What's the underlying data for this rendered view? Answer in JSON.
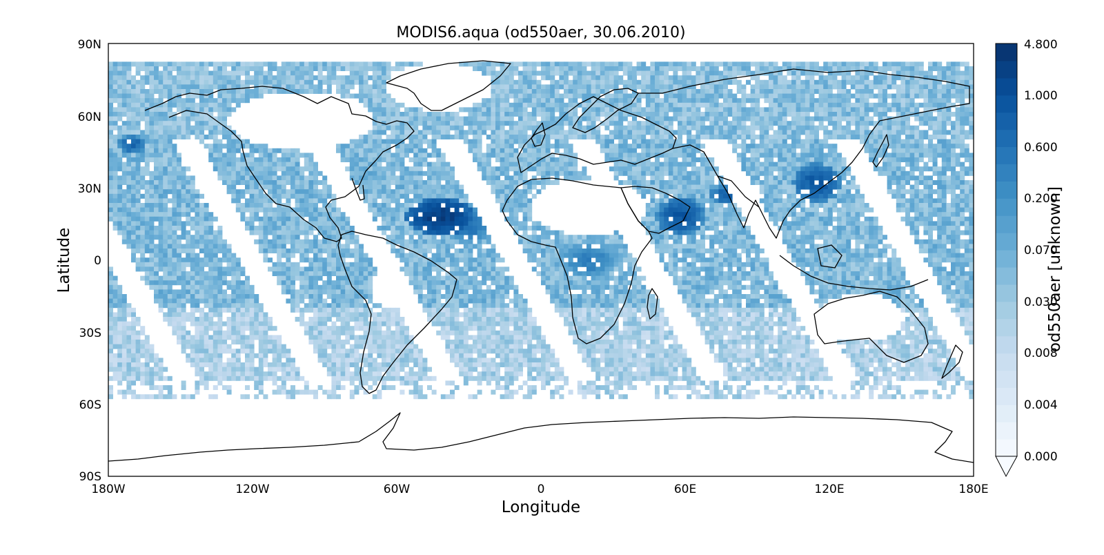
{
  "title": "MODIS6.aqua (od550aer, 30.06.2010)",
  "xlabel": "Longitude",
  "ylabel": "Latitude",
  "colorbar_label": "od550aer [unknown]",
  "x_ticks": [
    "180W",
    "120W",
    "60W",
    "0",
    "60E",
    "120E",
    "180E"
  ],
  "y_ticks": [
    "90N",
    "60N",
    "30N",
    "0",
    "30S",
    "60S",
    "90S"
  ],
  "colorbar_ticks": [
    "4.800",
    "1.000",
    "0.600",
    "0.200",
    "0.070",
    "0.030",
    "0.008",
    "0.004",
    "0.000"
  ],
  "colormap": {
    "name": "Blues",
    "low": "#f7fbff",
    "high": "#08306b",
    "extend": "min"
  },
  "chart_data": {
    "type": "heatmap",
    "title": "MODIS6.aqua (od550aer, 30.06.2010)",
    "xlabel": "Longitude",
    "ylabel": "Latitude",
    "xlim": [
      -180,
      180
    ],
    "ylim": [
      -90,
      90
    ],
    "x_ticks": [
      -180,
      -120,
      -60,
      0,
      60,
      120,
      180
    ],
    "y_ticks": [
      90,
      60,
      30,
      0,
      -30,
      -60,
      -90
    ],
    "colorbar": {
      "label": "od550aer [unknown]",
      "levels": [
        0.0,
        0.004,
        0.008,
        0.03,
        0.07,
        0.2,
        0.6,
        1.0,
        4.8
      ]
    },
    "coverage": {
      "lat_min": -57,
      "lat_max": 83,
      "pattern": "diagonal satellite swaths with gaps"
    },
    "notable_high_regions": [
      "tropical North Atlantic west of Africa (Saharan dust plume)",
      "Arabian Sea / Arabian Peninsula",
      "northern India / Indo-Gangetic plain",
      "eastern China"
    ]
  }
}
